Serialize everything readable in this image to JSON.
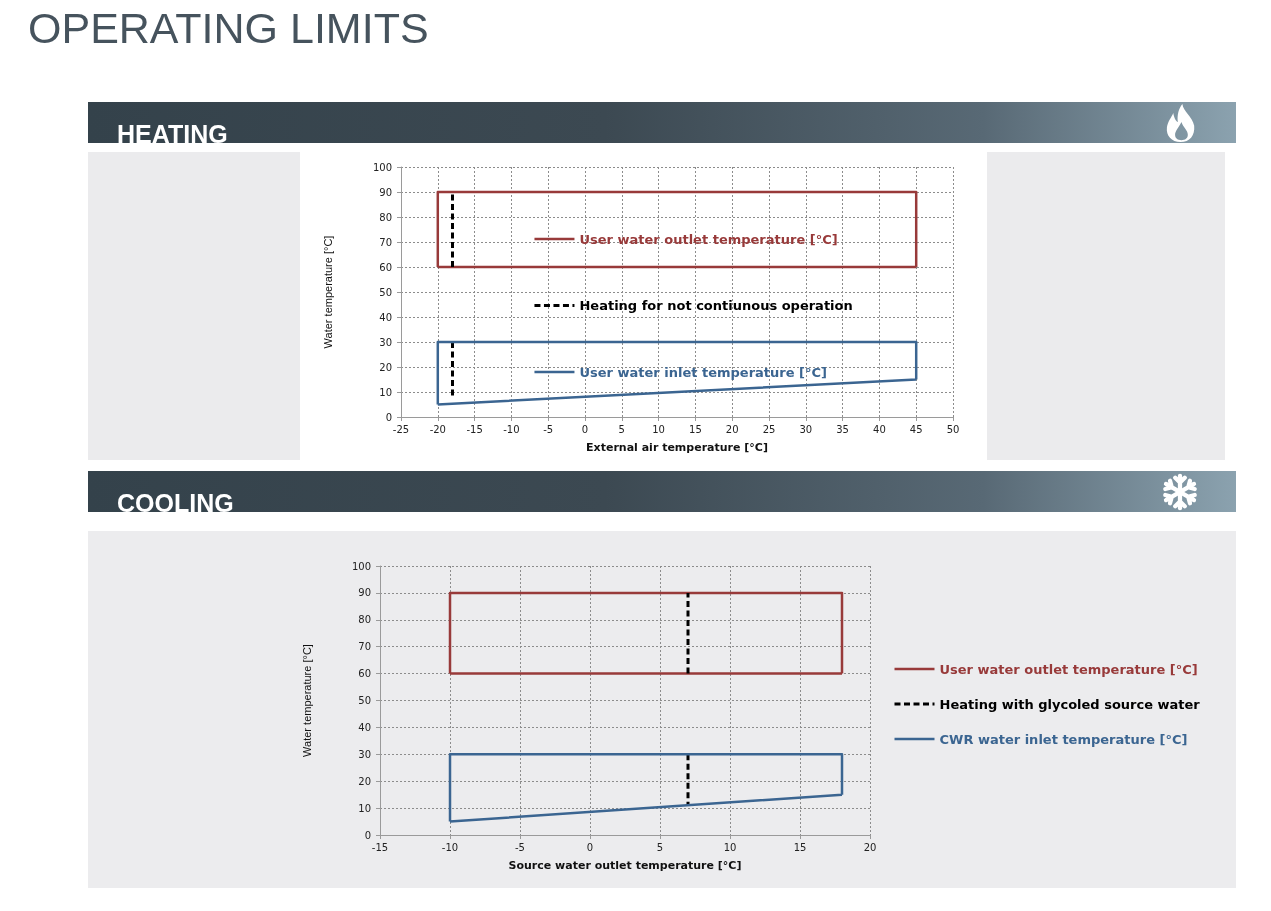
{
  "chart_data": [
    {
      "type": "other",
      "title": "OPERATING LIMITS"
    },
    {
      "type": "line",
      "title": "HEATING",
      "xlabel": "External air temperature [°C]",
      "ylabel": "Water temperature [°C]",
      "xlim": [
        -25,
        50
      ],
      "xticks": [
        -25,
        -20,
        -15,
        -10,
        -5,
        0,
        5,
        10,
        15,
        20,
        25,
        30,
        35,
        40,
        45,
        50
      ],
      "ylim": [
        0,
        100
      ],
      "yticks": [
        0,
        10,
        20,
        30,
        40,
        50,
        60,
        70,
        80,
        90,
        100
      ],
      "grid": true,
      "legend": "center",
      "marker": "none",
      "line_style": "solid",
      "series": [
        {
          "name": "User water outlet temperature [°C]",
          "color": "#983a3a",
          "x": [
            -20,
            -20,
            45,
            45,
            null,
            -20,
            45
          ],
          "values": [
            60,
            90,
            90,
            60,
            null,
            60,
            60
          ]
        },
        {
          "name": "Heating for not contiunous operation",
          "color": "#000000",
          "x": [
            -18,
            -18
          ],
          "values": [
            60,
            90
          ],
          "line_style": "dashed"
        },
        {
          "color": "#000000",
          "x": [
            -18,
            -18
          ],
          "values": [
            30,
            8
          ],
          "line_style": "dashed"
        },
        {
          "name": "User water inlet temperature [°C]",
          "color": "#3b6591",
          "x": [
            -20,
            -20,
            45,
            45,
            null,
            -20,
            45
          ],
          "values": [
            5,
            30,
            30,
            15,
            null,
            5,
            15
          ]
        }
      ]
    },
    {
      "type": "line",
      "title": "COOLING",
      "xlabel": "Source water outlet temperature [°C]",
      "ylabel": "Water temperature [°C]",
      "xlim": [
        -15,
        20
      ],
      "xticks": [
        -15,
        -10,
        -5,
        0,
        5,
        10,
        15,
        20
      ],
      "ylim": [
        0,
        100
      ],
      "yticks": [
        0,
        10,
        20,
        30,
        40,
        50,
        60,
        70,
        80,
        90,
        100
      ],
      "grid": true,
      "legend": "right",
      "marker": "none",
      "line_style": "solid",
      "series": [
        {
          "name": "User water outlet temperature [°C]",
          "color": "#983a3a",
          "x": [
            -10,
            -10,
            18,
            18,
            null,
            -10,
            18
          ],
          "values": [
            60,
            90,
            90,
            60,
            null,
            60,
            60
          ]
        },
        {
          "name": "Heating with glycoled source water",
          "color": "#000000",
          "x": [
            7,
            7
          ],
          "values": [
            60,
            90
          ],
          "line_style": "dashed"
        },
        {
          "color": "#000000",
          "x": [
            7,
            7
          ],
          "values": [
            30,
            11
          ],
          "line_style": "dashed"
        },
        {
          "name": "CWR water inlet temperature [°C]",
          "color": "#3b6591",
          "x": [
            -10,
            -10,
            18,
            18,
            null,
            -10,
            18
          ],
          "values": [
            5,
            30,
            30,
            15,
            null,
            5,
            15
          ]
        }
      ]
    }
  ]
}
